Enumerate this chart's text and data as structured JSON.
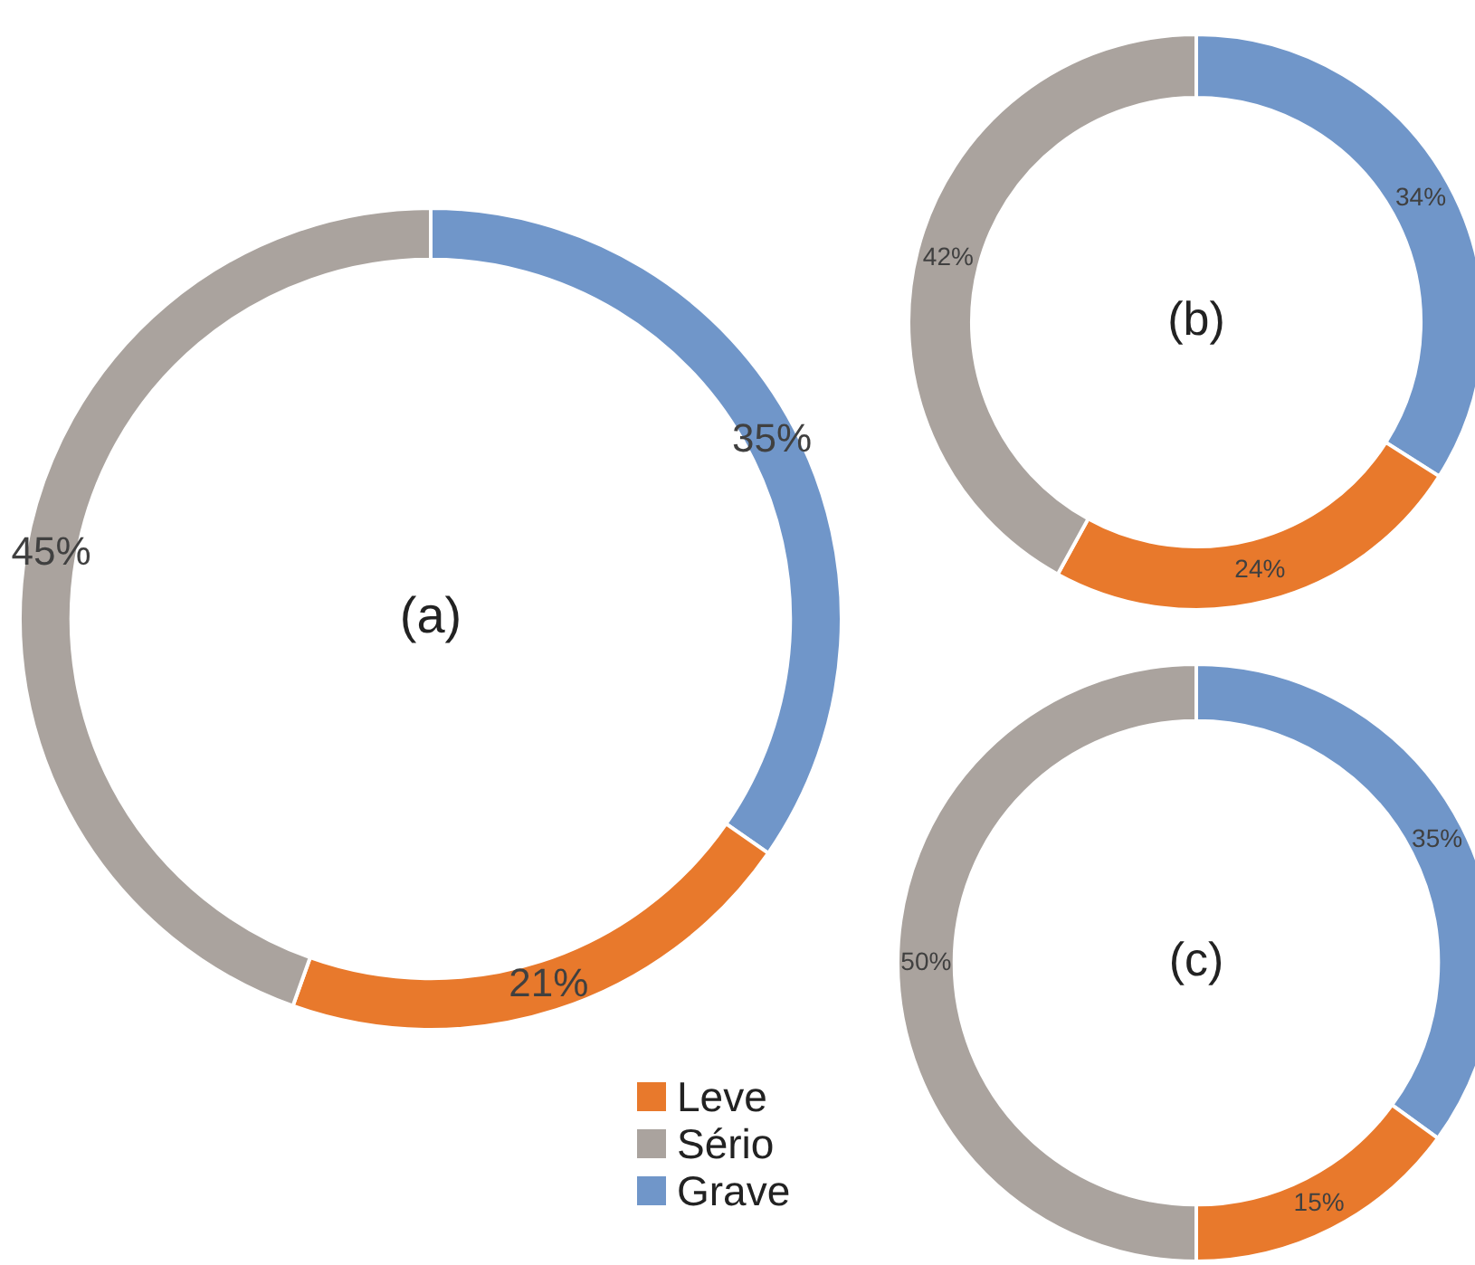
{
  "chart_data": [
    {
      "type": "donut",
      "title": "(a)",
      "categories": [
        "Grave",
        "Leve",
        "Sério"
      ],
      "values": [
        35,
        21,
        45
      ],
      "colors": [
        "#7096c9",
        "#e8792c",
        "#aaa39e"
      ],
      "value_labels": [
        "35%",
        "21%",
        "45%"
      ],
      "legend": "bottom right"
    },
    {
      "type": "donut",
      "title": "(b)",
      "categories": [
        null,
        null,
        null
      ],
      "values": [
        34,
        24,
        42
      ],
      "colors": [
        "#7096c9",
        "#e8792c",
        "#aaa39e"
      ],
      "value_labels": [
        "34%",
        "24%",
        "42%"
      ]
    },
    {
      "type": "donut",
      "title": "(c)",
      "categories": [
        null,
        null,
        null
      ],
      "values": [
        35,
        15,
        50
      ],
      "colors": [
        "#7096c9",
        "#e8792c",
        "#aaa39e"
      ],
      "value_labels": [
        "35%",
        "15%",
        "50%"
      ]
    }
  ]
}
